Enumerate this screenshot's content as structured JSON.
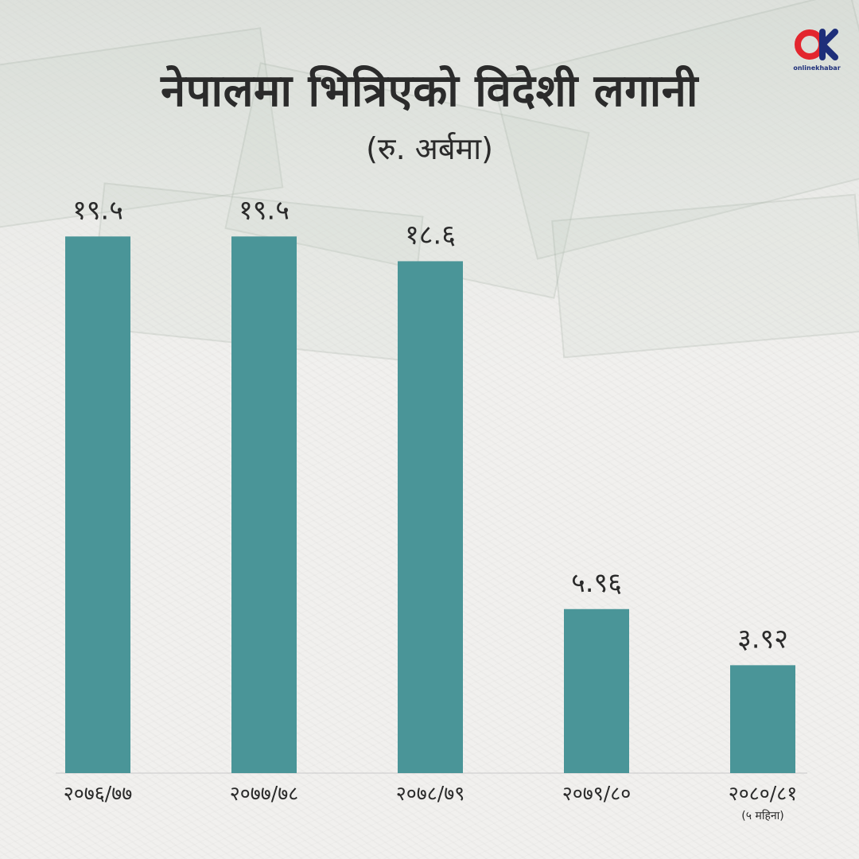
{
  "title": "नेपालमा भित्रिएको विदेशी लगानी",
  "subtitle": "(रु. अर्बमा)",
  "logo": {
    "text": "OK",
    "caption": "onlinekhabar"
  },
  "colors": {
    "bar": "#4a9598",
    "text": "#2a2a2a",
    "logo_red": "#e3262e",
    "logo_blue": "#1e2f7a"
  },
  "chart_data": {
    "type": "bar",
    "categories": [
      "२०७६/७७",
      "२०७७/७८",
      "२०७८/७९",
      "२०७९/८०",
      "२०८०/८१"
    ],
    "values": [
      19.5,
      19.5,
      18.6,
      5.96,
      3.92
    ],
    "value_labels": [
      "१९.५",
      "१९.५",
      "१८.६",
      "५.९६",
      "३.९२"
    ],
    "category_notes": [
      "",
      "",
      "",
      "",
      "(५ महिना)"
    ],
    "ylim": [
      0,
      20
    ],
    "grid": false,
    "legend": "none"
  }
}
